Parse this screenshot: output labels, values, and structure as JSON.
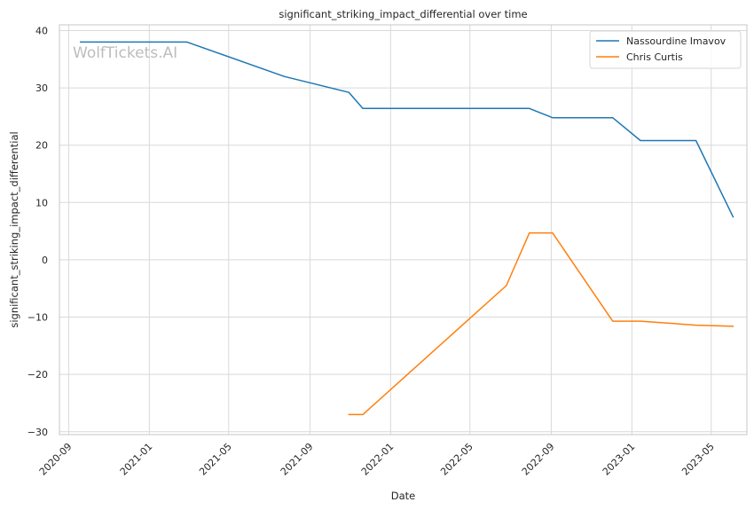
{
  "chart_data": {
    "type": "line",
    "title": "significant_striking_impact_differential over time",
    "xlabel": "Date",
    "ylabel": "significant_striking_impact_differential",
    "watermark": "WolfTickets.AI",
    "x_axis_type": "date",
    "xlim": [
      "2020-08-18",
      "2023-06-24"
    ],
    "ylim": [
      -30.5,
      41
    ],
    "x_ticks": [
      "2020-09",
      "2021-01",
      "2021-05",
      "2021-09",
      "2022-01",
      "2022-05",
      "2022-09",
      "2023-01",
      "2023-05"
    ],
    "y_ticks": [
      -30,
      -20,
      -10,
      0,
      10,
      20,
      30,
      40
    ],
    "grid": true,
    "legend_position": "top-right",
    "series": [
      {
        "name": "Nassourdine Imavov",
        "color": "#1f77b4",
        "points": [
          {
            "x": "2020-09-19",
            "y": 38.0
          },
          {
            "x": "2021-02-27",
            "y": 38.0
          },
          {
            "x": "2021-07-24",
            "y": 32.0
          },
          {
            "x": "2021-10-30",
            "y": 29.2
          },
          {
            "x": "2021-11-20",
            "y": 26.4
          },
          {
            "x": "2022-07-30",
            "y": 26.4
          },
          {
            "x": "2022-09-03",
            "y": 24.8
          },
          {
            "x": "2022-12-03",
            "y": 24.8
          },
          {
            "x": "2023-01-14",
            "y": 20.8
          },
          {
            "x": "2023-04-08",
            "y": 20.8
          },
          {
            "x": "2023-06-03",
            "y": 7.5
          }
        ]
      },
      {
        "name": "Chris Curtis",
        "color": "#ff7f0e",
        "points": [
          {
            "x": "2021-10-30",
            "y": -27.0
          },
          {
            "x": "2021-11-20",
            "y": -27.0
          },
          {
            "x": "2022-06-25",
            "y": -4.5
          },
          {
            "x": "2022-07-30",
            "y": 4.7
          },
          {
            "x": "2022-09-03",
            "y": 4.7
          },
          {
            "x": "2022-12-03",
            "y": -10.7
          },
          {
            "x": "2023-01-14",
            "y": -10.7
          },
          {
            "x": "2023-04-08",
            "y": -11.4
          },
          {
            "x": "2023-06-03",
            "y": -11.6
          }
        ]
      }
    ]
  }
}
